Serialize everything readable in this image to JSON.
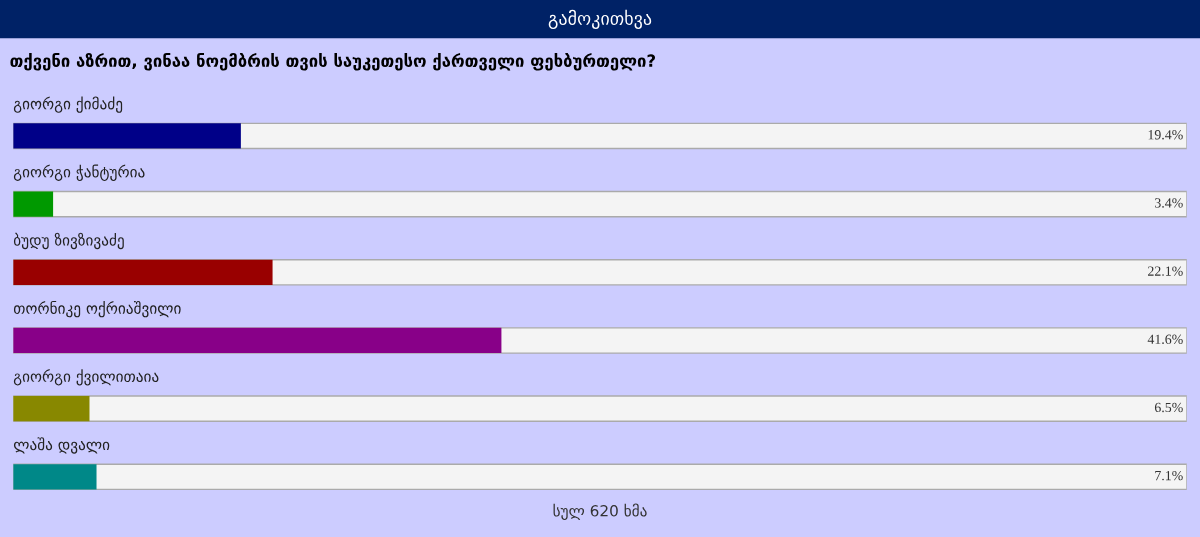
{
  "chart_data": {
    "type": "bar",
    "orientation": "horizontal",
    "title": "გამოკითხვა",
    "subtitle": "თქვენი აზრით, ვინაა ნოემბრის თვის საუკეთესო ქართველი ფეხბურთელი?",
    "categories": [
      "გიორგი ქიმაძე",
      "გიორგი ჭანტურია",
      "ბუდუ ზივზივაძე",
      "თორნიკე ოქრიაშვილი",
      "გიორგი ქვილითაია",
      "ლაშა დვალი"
    ],
    "values": [
      19.4,
      3.4,
      22.1,
      41.6,
      6.5,
      7.1
    ],
    "value_labels": [
      "19.4%",
      "3.4%",
      "22.1%",
      "41.6%",
      "6.5%",
      "7.1%"
    ],
    "colors": [
      "#000088",
      "#009900",
      "#990000",
      "#880088",
      "#888800",
      "#008888"
    ],
    "xlim": [
      0,
      100
    ],
    "annotations": [
      "სულ 620 ხმა"
    ]
  }
}
